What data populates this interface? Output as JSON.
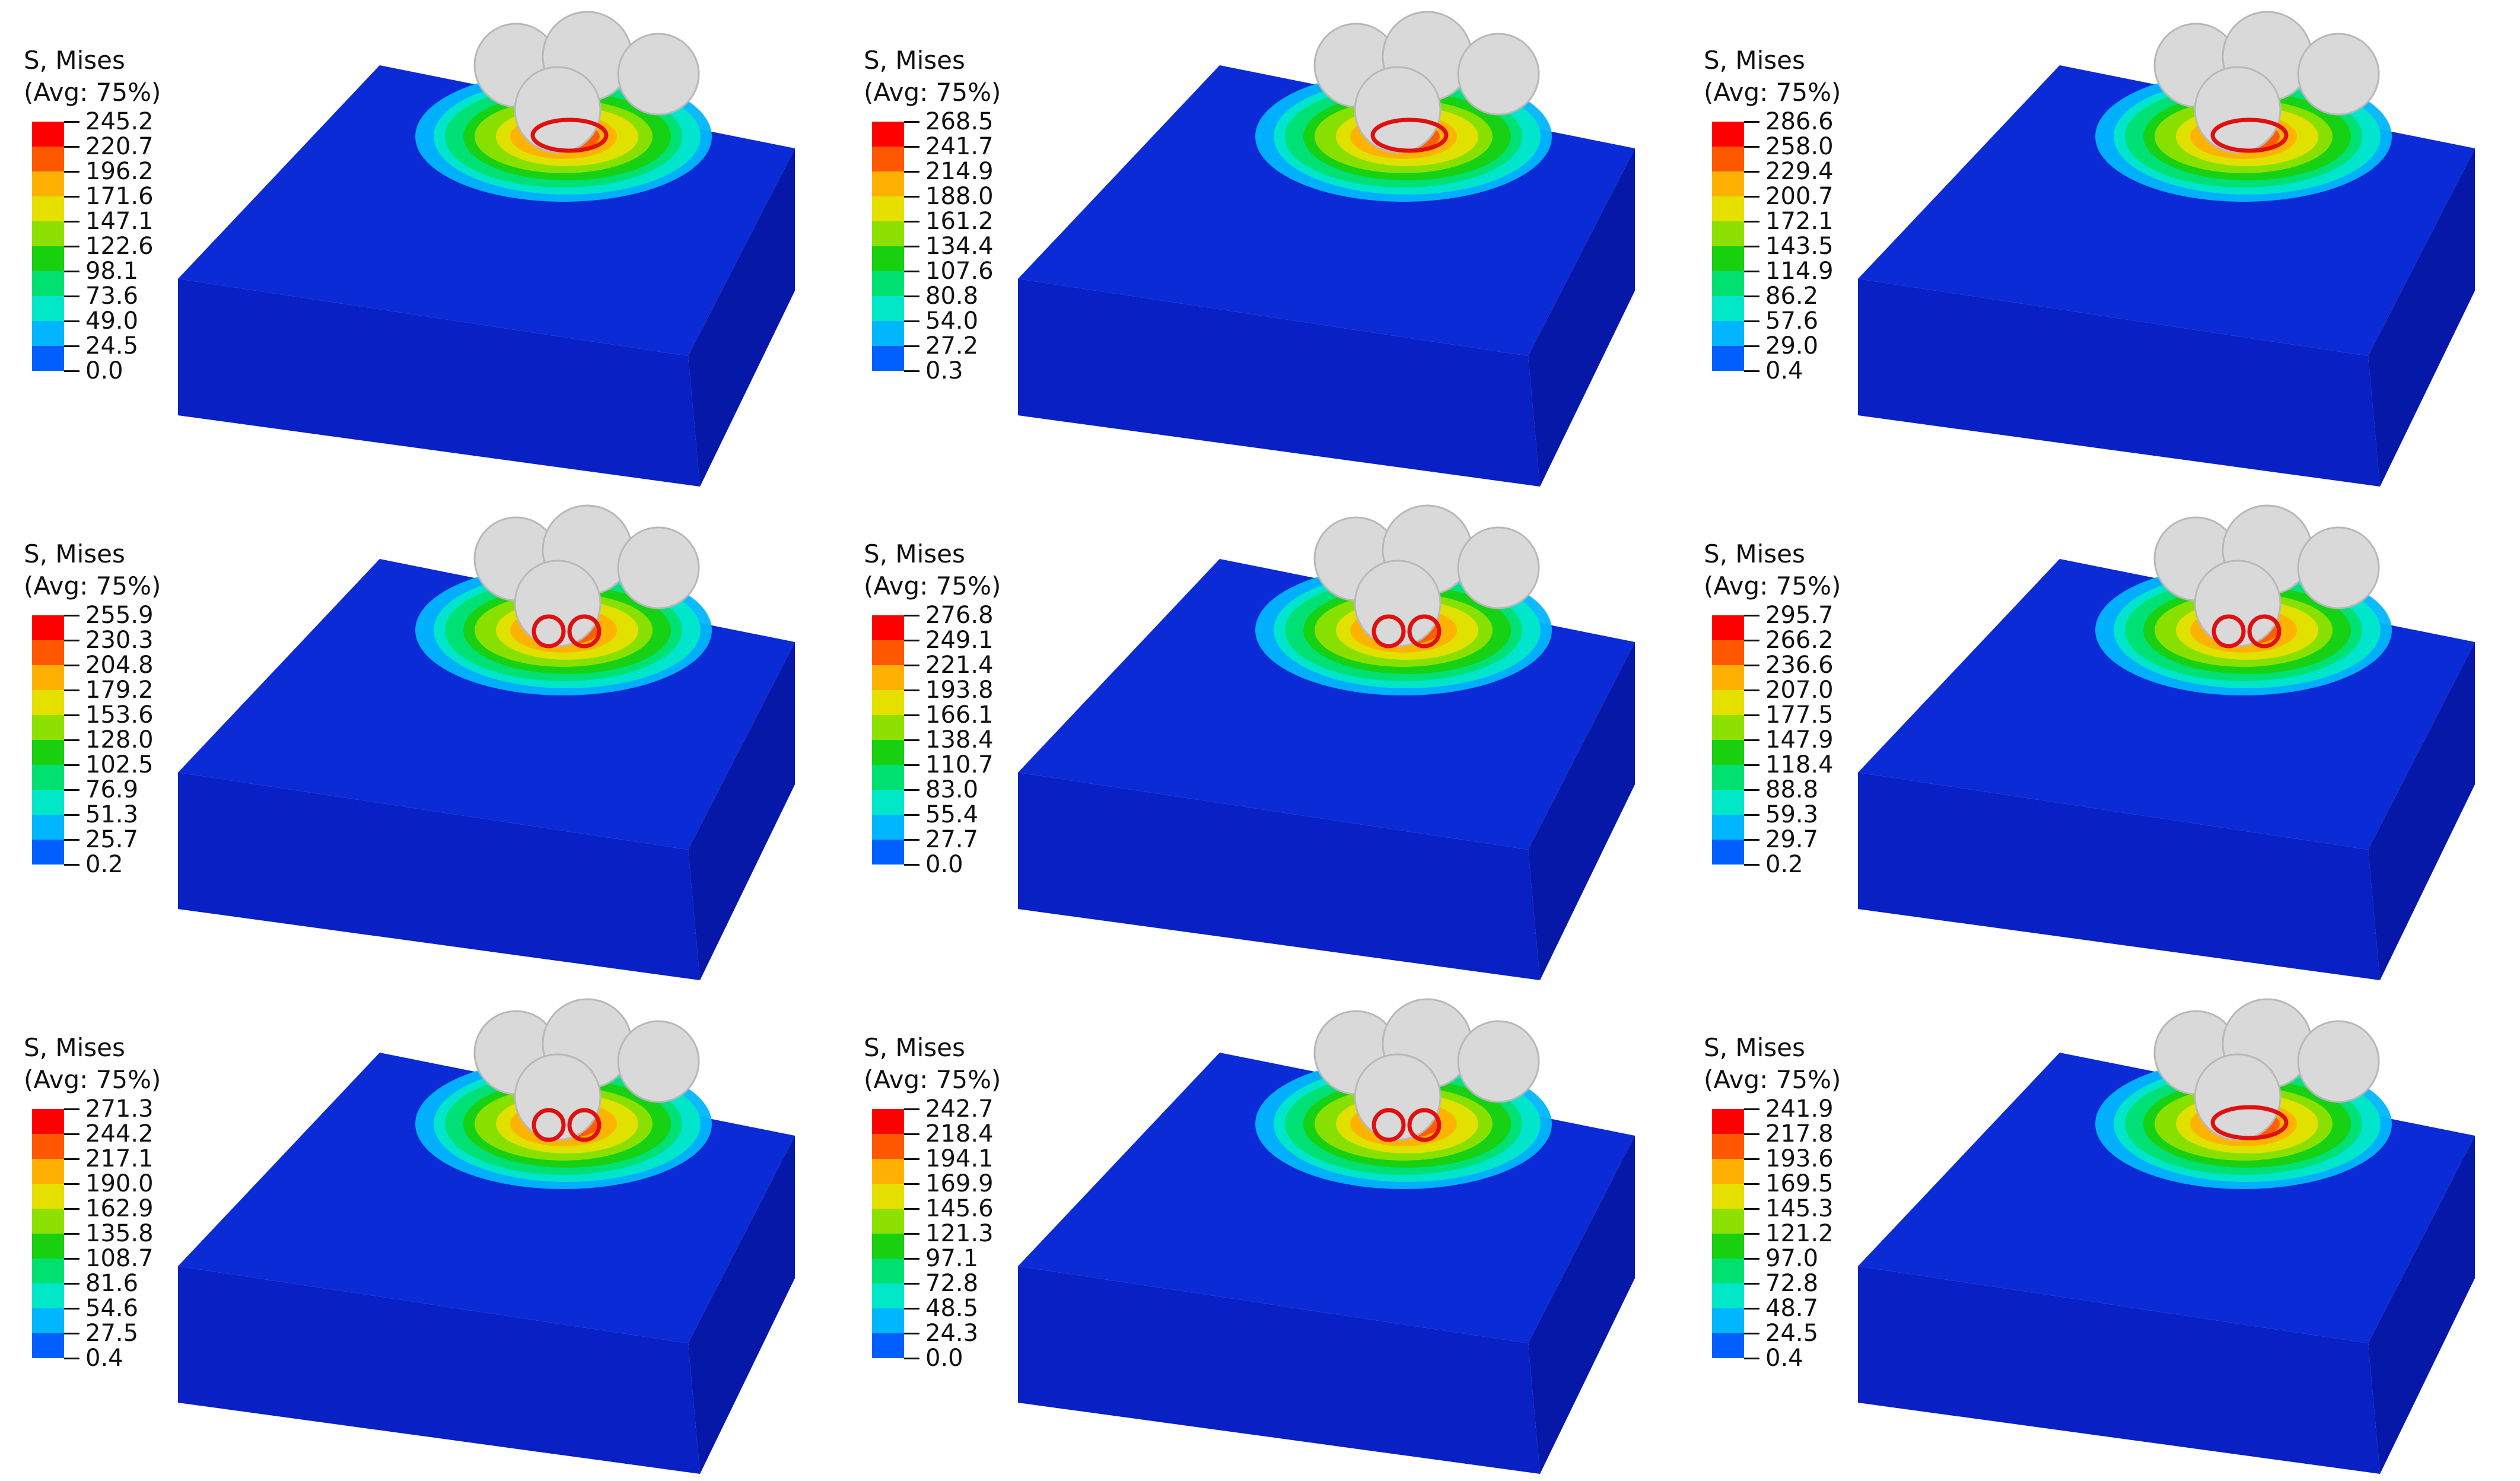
{
  "colors": {
    "substrate_top": "#0a2bd6",
    "substrate_front": "#0820c4",
    "substrate_side": "#0618a8",
    "marker": "#e01010",
    "rollers": "#d9d9d9",
    "legend_bands": [
      "#0000ff",
      "#0060ff",
      "#00b6ff",
      "#00e8c8",
      "#00e070",
      "#18d010",
      "#8ee000",
      "#e6e000",
      "#ffb000",
      "#ff5800",
      "#ff0000"
    ]
  },
  "panels": [
    {
      "id": "p1",
      "title": "S, Mises",
      "subtitle": "(Avg: 75%)",
      "marker": "single",
      "values": [
        "245.2",
        "220.7",
        "196.2",
        "171.6",
        "147.1",
        "122.6",
        "98.1",
        "73.6",
        "49.0",
        "24.5",
        "0.0"
      ]
    },
    {
      "id": "p2",
      "title": "S, Mises",
      "subtitle": "(Avg: 75%)",
      "marker": "single",
      "values": [
        "268.5",
        "241.7",
        "214.9",
        "188.0",
        "161.2",
        "134.4",
        "107.6",
        "80.8",
        "54.0",
        "27.2",
        "0.3"
      ]
    },
    {
      "id": "p3",
      "title": "S, Mises",
      "subtitle": "(Avg: 75%)",
      "marker": "single",
      "values": [
        "286.6",
        "258.0",
        "229.4",
        "200.7",
        "172.1",
        "143.5",
        "114.9",
        "86.2",
        "57.6",
        "29.0",
        "0.4"
      ]
    },
    {
      "id": "p4",
      "title": "S, Mises",
      "subtitle": "(Avg: 75%)",
      "marker": "double",
      "values": [
        "255.9",
        "230.3",
        "204.8",
        "179.2",
        "153.6",
        "128.0",
        "102.5",
        "76.9",
        "51.3",
        "25.7",
        "0.2"
      ]
    },
    {
      "id": "p5",
      "title": "S, Mises",
      "subtitle": "(Avg: 75%)",
      "marker": "double",
      "values": [
        "276.8",
        "249.1",
        "221.4",
        "193.8",
        "166.1",
        "138.4",
        "110.7",
        "83.0",
        "55.4",
        "27.7",
        "0.0"
      ]
    },
    {
      "id": "p6",
      "title": "S, Mises",
      "subtitle": "(Avg: 75%)",
      "marker": "double",
      "values": [
        "295.7",
        "266.2",
        "236.6",
        "207.0",
        "177.5",
        "147.9",
        "118.4",
        "88.8",
        "59.3",
        "29.7",
        "0.2"
      ]
    },
    {
      "id": "p7",
      "title": "S, Mises",
      "subtitle": "(Avg: 75%)",
      "marker": "double",
      "values": [
        "271.3",
        "244.2",
        "217.1",
        "190.0",
        "162.9",
        "135.8",
        "108.7",
        "81.6",
        "54.6",
        "27.5",
        "0.4"
      ]
    },
    {
      "id": "p8",
      "title": "S, Mises",
      "subtitle": "(Avg: 75%)",
      "marker": "double",
      "values": [
        "242.7",
        "218.4",
        "194.1",
        "169.9",
        "145.6",
        "121.3",
        "97.1",
        "72.8",
        "48.5",
        "24.3",
        "0.0"
      ]
    },
    {
      "id": "p9",
      "title": "S, Mises",
      "subtitle": "(Avg: 75%)",
      "marker": "single",
      "values": [
        "241.9",
        "217.8",
        "193.6",
        "169.5",
        "145.3",
        "121.2",
        "97.0",
        "72.8",
        "48.7",
        "24.5",
        "0.4"
      ]
    }
  ]
}
